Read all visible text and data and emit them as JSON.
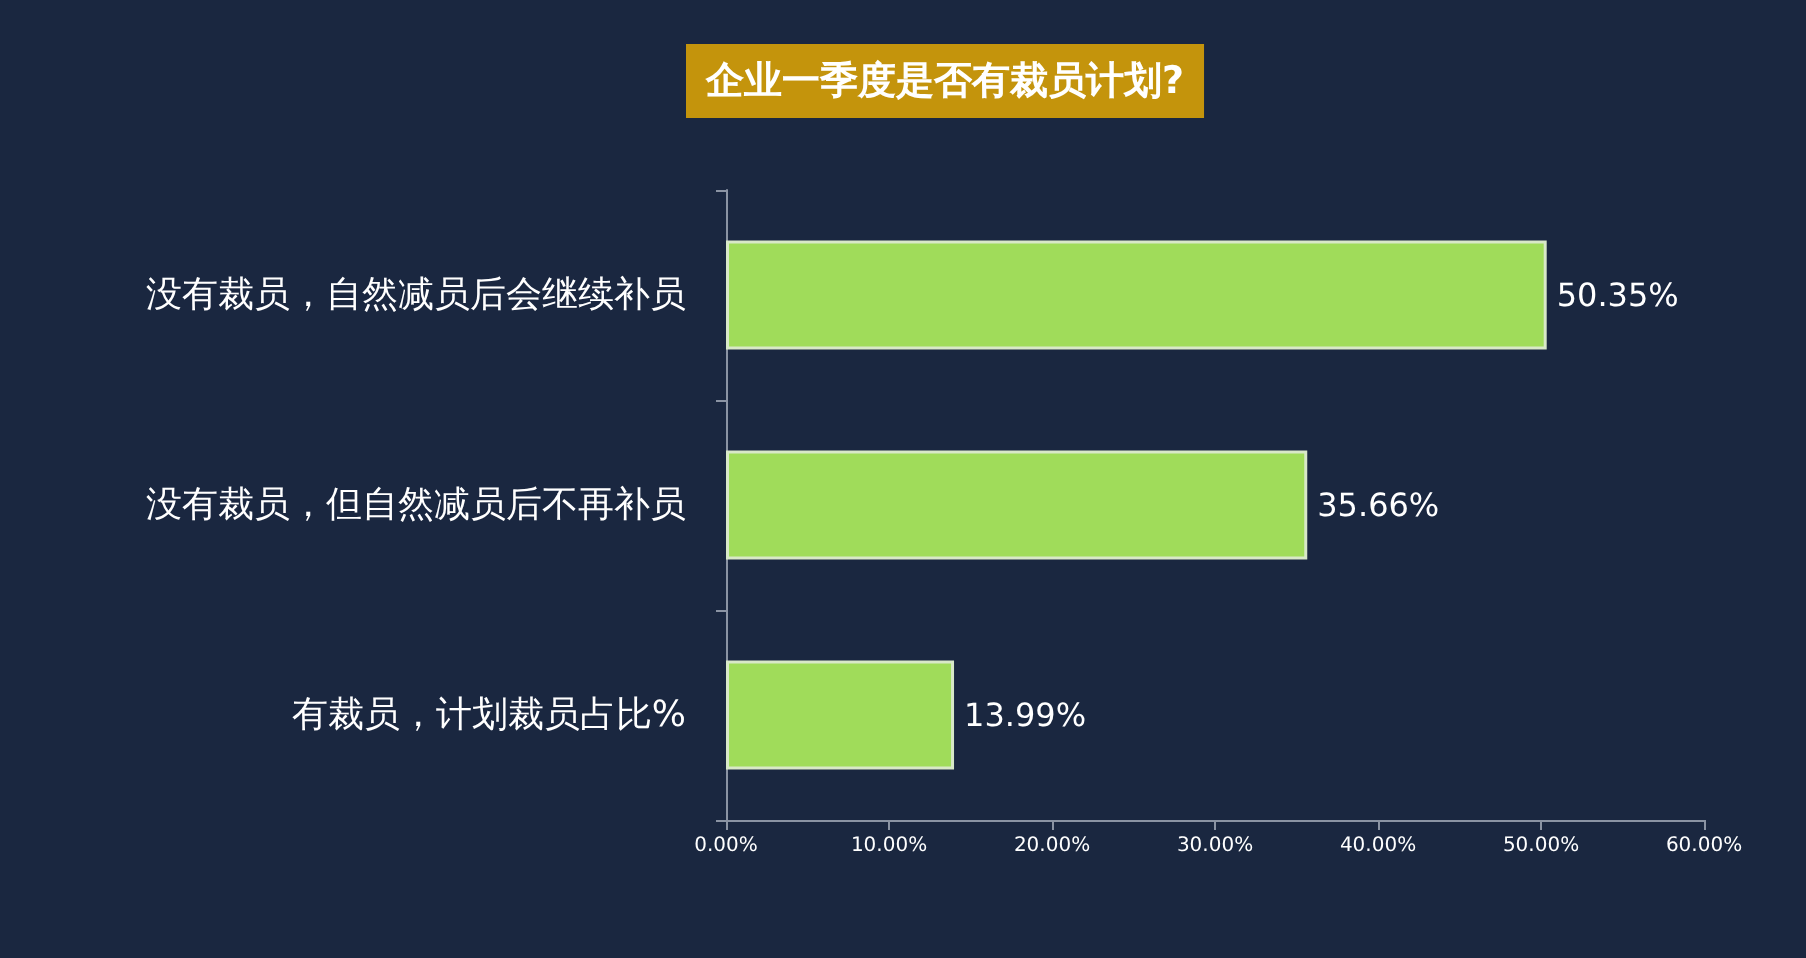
{
  "chart_data": {
    "type": "bar",
    "orientation": "horizontal",
    "title": "企业一季度是否有裁员计划?",
    "categories": [
      "没有裁员，自然减员后会继续补员",
      "没有裁员，但自然减员后不再补员",
      "有裁员，计划裁员占比%"
    ],
    "values": [
      50.35,
      35.66,
      13.99
    ],
    "color": "#a0dc5a",
    "value_labels": [
      "50.35%",
      "35.66%",
      "13.99%"
    ],
    "xlim": [
      0,
      60
    ],
    "xticks": [
      {
        "value": 0,
        "label": "0.00%"
      },
      {
        "value": 10,
        "label": "10.00%"
      },
      {
        "value": 20,
        "label": "20.00%"
      },
      {
        "value": 30,
        "label": "30.00%"
      },
      {
        "value": 40,
        "label": "40.00%"
      },
      {
        "value": 50,
        "label": "50.00%"
      },
      {
        "value": 60,
        "label": "60.00%"
      }
    ]
  }
}
